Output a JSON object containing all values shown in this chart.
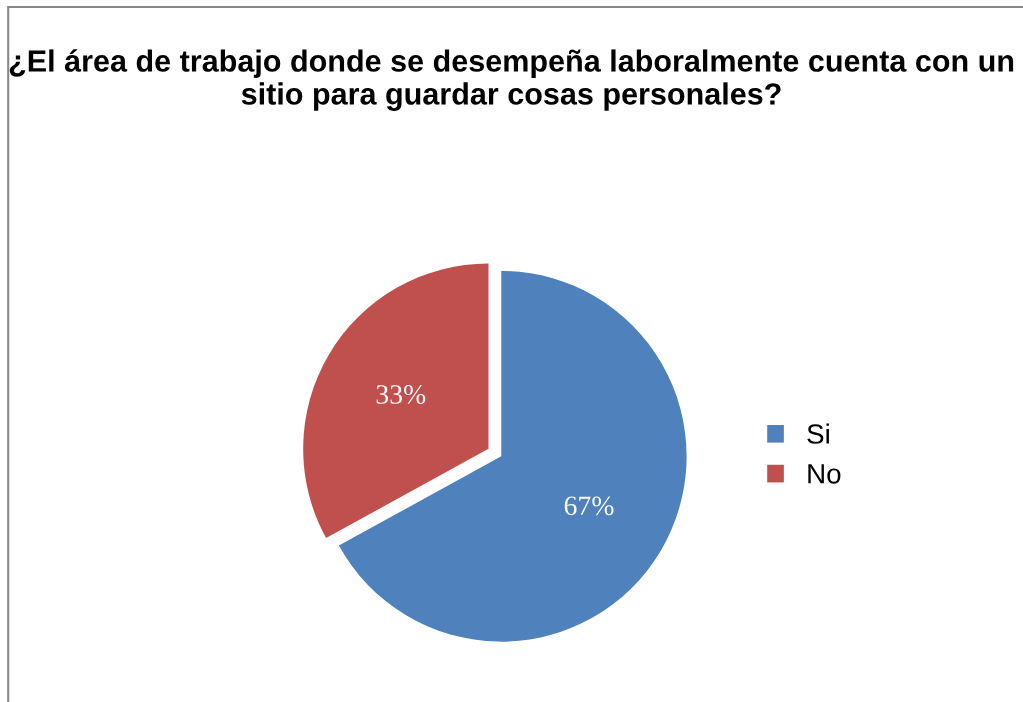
{
  "chart_data": {
    "type": "pie",
    "title": "¿El área de trabajo donde se desempeña laboralmente cuenta con un sitio para guardar cosas personales?",
    "categories": [
      "Si",
      "No"
    ],
    "values": [
      67,
      33
    ],
    "colors": [
      "#4f81bd",
      "#c0504d"
    ],
    "value_labels": [
      "67%",
      "33%"
    ],
    "legend": "right"
  }
}
